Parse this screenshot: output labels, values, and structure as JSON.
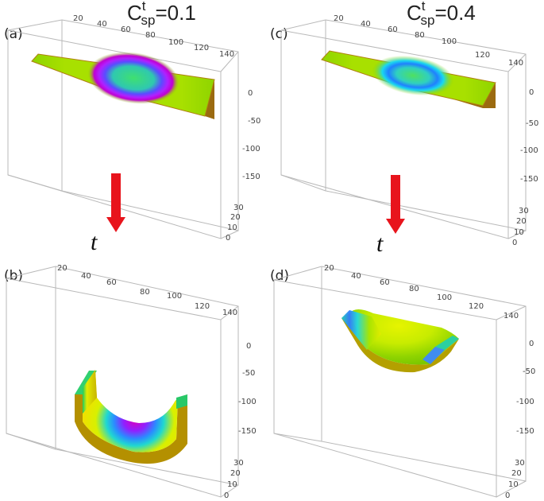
{
  "headings": {
    "left": {
      "base": "C",
      "sup": "t",
      "sub": "sp",
      "suffix": "=0.1"
    },
    "right": {
      "base": "C",
      "sup": "t",
      "sub": "sp",
      "suffix": "=0.4"
    }
  },
  "arrow_label": "t",
  "arrow_color": "#e8141c",
  "panels": [
    {
      "label": "(a)",
      "x_ticks": [
        "20",
        "40",
        "60",
        "80",
        "100",
        "120",
        "140"
      ],
      "z_ticks": [
        "0",
        "-50",
        "-100",
        "-150"
      ],
      "y_ticks": [
        "30",
        "20",
        "10",
        "0"
      ]
    },
    {
      "label": "(b)",
      "x_ticks": [
        "20",
        "40",
        "60",
        "80",
        "100",
        "120",
        "140"
      ],
      "z_ticks": [
        "0",
        "-50",
        "-100",
        "-150"
      ],
      "y_ticks": [
        "30",
        "20",
        "10",
        "0"
      ]
    },
    {
      "label": "(c)",
      "x_ticks": [
        "20",
        "40",
        "60",
        "80",
        "100",
        "120",
        "140"
      ],
      "z_ticks": [
        "0",
        "-50",
        "-100",
        "-150"
      ],
      "y_ticks": [
        "30",
        "20",
        "10",
        "0"
      ]
    },
    {
      "label": "(d)",
      "x_ticks": [
        "20",
        "40",
        "60",
        "80",
        "100",
        "120",
        "140"
      ],
      "z_ticks": [
        "0",
        "-50",
        "-100",
        "-150"
      ],
      "y_ticks": [
        "30",
        "20",
        "10",
        "0"
      ]
    }
  ],
  "colors": {
    "green": "#8fd400",
    "yellow": "#e8f000",
    "cyan": "#19d8f0",
    "blue": "#2b6cff",
    "purple": "#9b1cff",
    "magenta": "#d000c8",
    "edge": "#a07a10"
  }
}
